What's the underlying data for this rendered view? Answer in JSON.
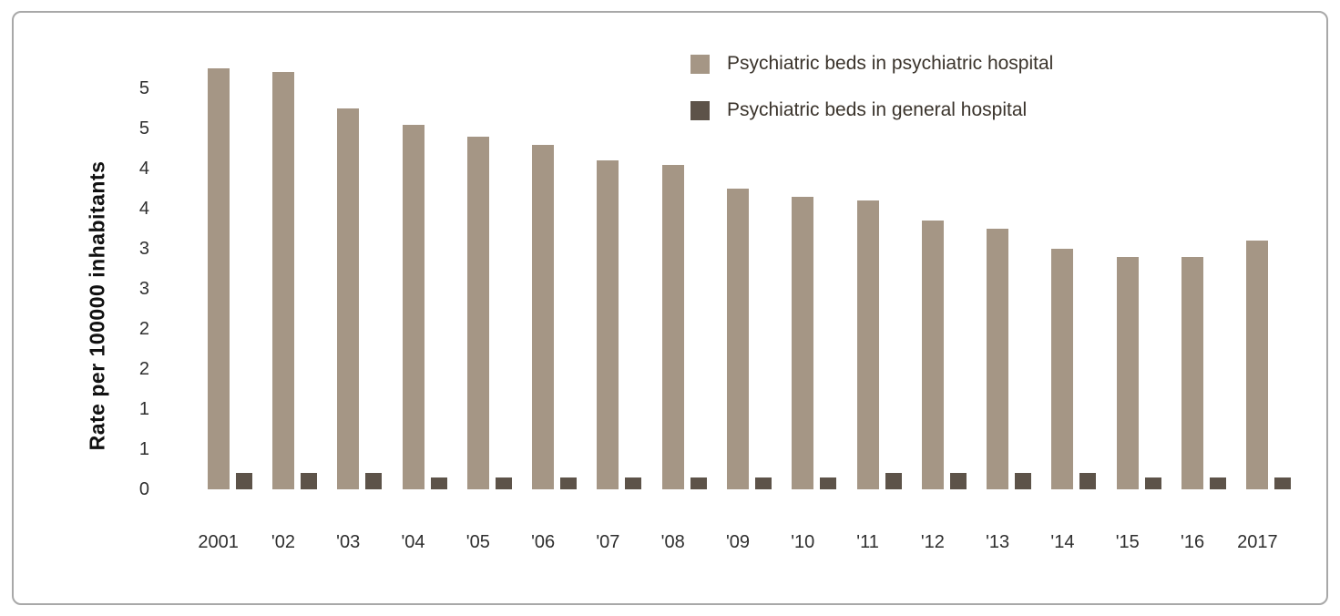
{
  "chart_data": {
    "type": "bar",
    "title": "",
    "xlabel": "",
    "ylabel": "Rate per 100000 inhabitants",
    "categories": [
      "2001",
      "'02",
      "'03",
      "'04",
      "'05",
      "'06",
      "'07",
      "'08",
      "'09",
      "'10",
      "'11",
      "'12",
      "'13",
      "'14",
      "'15",
      "'16",
      "2017"
    ],
    "series": [
      {
        "name": "Psychiatric beds in psychiatric hospital",
        "color": "#a59685",
        "values": [
          5.25,
          5.2,
          4.75,
          4.55,
          4.4,
          4.3,
          4.1,
          4.05,
          3.75,
          3.65,
          3.6,
          3.35,
          3.25,
          3.0,
          2.9,
          2.9,
          3.1
        ]
      },
      {
        "name": "Psychiatric beds in general hospital",
        "color": "#5d5349",
        "values": [
          0.2,
          0.2,
          0.2,
          0.15,
          0.15,
          0.15,
          0.15,
          0.15,
          0.15,
          0.15,
          0.2,
          0.2,
          0.2,
          0.2,
          0.15,
          0.15,
          0.15
        ]
      }
    ],
    "ylim": [
      0,
      5
    ],
    "ytick_values": [
      0,
      0.5,
      1,
      1.5,
      2,
      2.5,
      3,
      3.5,
      4,
      4.5,
      5
    ],
    "ytick_labels": [
      "0",
      "1",
      "1",
      "2",
      "2",
      "3",
      "3",
      "4",
      "4",
      "5",
      "5"
    ],
    "grid": false,
    "legend_position": "top-right"
  }
}
